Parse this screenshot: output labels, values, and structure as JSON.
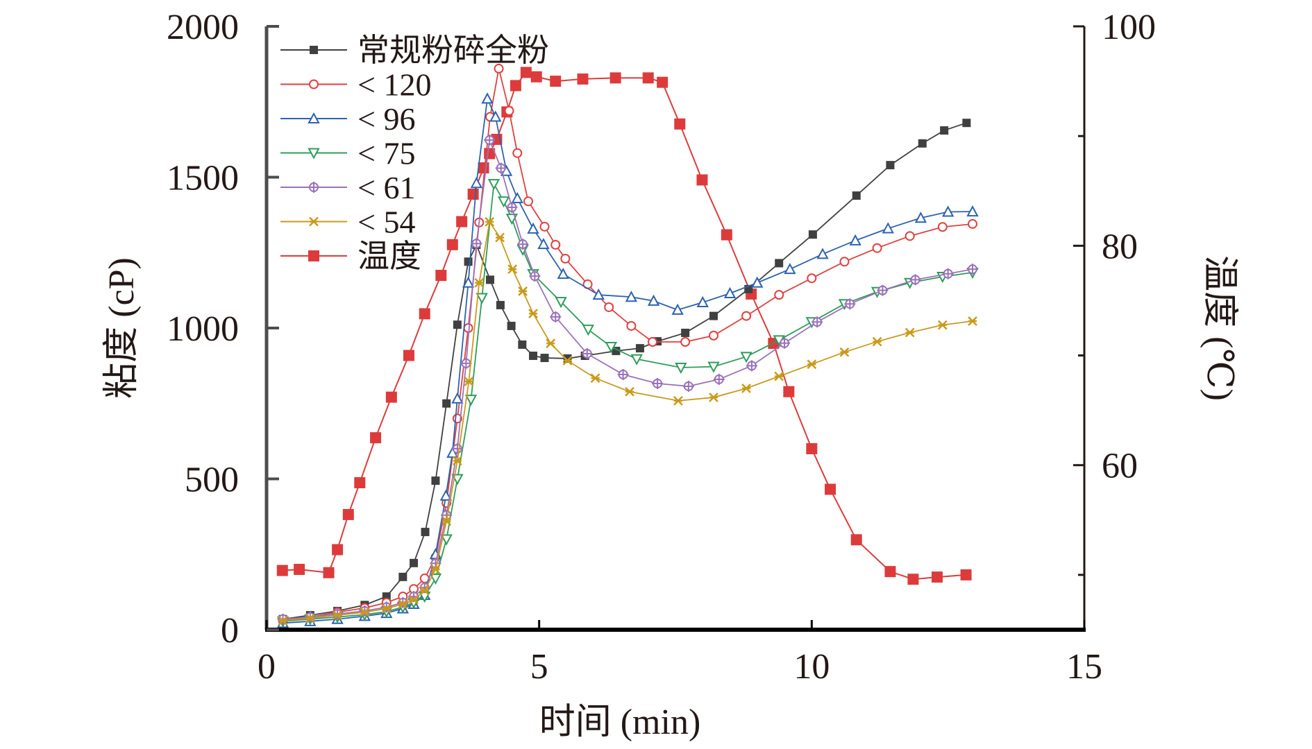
{
  "chart_data": {
    "type": "line",
    "title": "",
    "xlabel": "时间 (min)",
    "ylabel": "粘度 (cP)",
    "y2label": "温度 (℃)",
    "xlim": [
      0,
      15
    ],
    "ylim": [
      0,
      2000
    ],
    "y2lim": [
      45,
      100
    ],
    "xticks": [
      0,
      5,
      10,
      15
    ],
    "yticks": [
      0,
      500,
      1000,
      1500,
      2000
    ],
    "y2ticks": [
      60,
      80,
      100
    ],
    "y2minor_ticks": [
      50,
      70,
      90
    ],
    "grid": false,
    "legend_position": "top-left",
    "series": [
      {
        "name": "常规粉碎全粉",
        "axis": "left",
        "color": "#404040",
        "marker": "filled-square",
        "points": [
          [
            0.3,
            35
          ],
          [
            0.8,
            48
          ],
          [
            1.3,
            62
          ],
          [
            1.8,
            82
          ],
          [
            2.2,
            110
          ],
          [
            2.5,
            175
          ],
          [
            2.7,
            221
          ],
          [
            2.91,
            324
          ],
          [
            3.1,
            494
          ],
          [
            3.3,
            750
          ],
          [
            3.5,
            1011
          ],
          [
            3.7,
            1220
          ],
          [
            3.85,
            1276
          ],
          [
            4.1,
            1160
          ],
          [
            4.29,
            1076
          ],
          [
            4.49,
            1007
          ],
          [
            4.69,
            945
          ],
          [
            4.89,
            908
          ],
          [
            5.1,
            901
          ],
          [
            5.52,
            899
          ],
          [
            5.84,
            908
          ],
          [
            6.41,
            924
          ],
          [
            6.85,
            933
          ],
          [
            7.17,
            956
          ],
          [
            7.68,
            984
          ],
          [
            8.2,
            1040
          ],
          [
            8.84,
            1129
          ],
          [
            9.4,
            1215
          ],
          [
            10.02,
            1310
          ],
          [
            10.82,
            1439
          ],
          [
            11.44,
            1540
          ],
          [
            12.03,
            1612
          ],
          [
            12.43,
            1655
          ],
          [
            12.84,
            1680
          ]
        ]
      },
      {
        "name": "< 120",
        "axis": "left",
        "color": "#e0403f",
        "marker": "open-circle",
        "points": [
          [
            0.3,
            30
          ],
          [
            0.8,
            42
          ],
          [
            1.3,
            58
          ],
          [
            1.8,
            72
          ],
          [
            2.2,
            90
          ],
          [
            2.5,
            110
          ],
          [
            2.7,
            135
          ],
          [
            2.9,
            170
          ],
          [
            3.1,
            240
          ],
          [
            3.3,
            420
          ],
          [
            3.5,
            700
          ],
          [
            3.7,
            1000
          ],
          [
            3.9,
            1350
          ],
          [
            4.1,
            1700
          ],
          [
            4.26,
            1860
          ],
          [
            4.45,
            1720
          ],
          [
            4.6,
            1580
          ],
          [
            4.8,
            1420
          ],
          [
            5.1,
            1336
          ],
          [
            5.3,
            1276
          ],
          [
            5.48,
            1230
          ],
          [
            5.89,
            1145
          ],
          [
            6.28,
            1069
          ],
          [
            6.69,
            1007
          ],
          [
            7.08,
            954
          ],
          [
            7.68,
            954
          ],
          [
            8.2,
            975
          ],
          [
            8.8,
            1040
          ],
          [
            9.4,
            1110
          ],
          [
            10.0,
            1165
          ],
          [
            10.6,
            1220
          ],
          [
            11.2,
            1265
          ],
          [
            11.8,
            1305
          ],
          [
            12.4,
            1335
          ],
          [
            12.95,
            1345
          ]
        ]
      },
      {
        "name": "< 96",
        "axis": "left",
        "color": "#2c62b0",
        "marker": "open-triangle-up",
        "points": [
          [
            0.3,
            22
          ],
          [
            0.8,
            28
          ],
          [
            1.3,
            35
          ],
          [
            1.8,
            45
          ],
          [
            2.2,
            55
          ],
          [
            2.5,
            70
          ],
          [
            2.7,
            85
          ],
          [
            2.9,
            115
          ],
          [
            3.1,
            250
          ],
          [
            3.29,
            444
          ],
          [
            3.41,
            586
          ],
          [
            3.5,
            766
          ],
          [
            3.7,
            1150
          ],
          [
            3.85,
            1480
          ],
          [
            4.05,
            1760
          ],
          [
            4.2,
            1700
          ],
          [
            4.4,
            1520
          ],
          [
            4.6,
            1430
          ],
          [
            4.89,
            1329
          ],
          [
            5.08,
            1278
          ],
          [
            5.44,
            1179
          ],
          [
            6.09,
            1110
          ],
          [
            6.69,
            1103
          ],
          [
            7.1,
            1090
          ],
          [
            7.54,
            1060
          ],
          [
            8.0,
            1085
          ],
          [
            8.5,
            1115
          ],
          [
            9.0,
            1150
          ],
          [
            9.6,
            1195
          ],
          [
            10.2,
            1245
          ],
          [
            10.8,
            1290
          ],
          [
            11.4,
            1330
          ],
          [
            12.0,
            1365
          ],
          [
            12.5,
            1385
          ],
          [
            12.95,
            1386
          ]
        ]
      },
      {
        "name": "< 75",
        "axis": "left",
        "color": "#2e9c5a",
        "marker": "open-triangle-down",
        "points": [
          [
            0.3,
            28
          ],
          [
            0.8,
            35
          ],
          [
            1.3,
            42
          ],
          [
            1.8,
            50
          ],
          [
            2.2,
            60
          ],
          [
            2.5,
            75
          ],
          [
            2.7,
            90
          ],
          [
            2.9,
            110
          ],
          [
            3.1,
            170
          ],
          [
            3.3,
            300
          ],
          [
            3.5,
            500
          ],
          [
            3.75,
            763
          ],
          [
            3.95,
            1100
          ],
          [
            4.17,
            1478
          ],
          [
            4.35,
            1420
          ],
          [
            4.5,
            1363
          ],
          [
            4.7,
            1260
          ],
          [
            4.89,
            1179
          ],
          [
            5.4,
            1087
          ],
          [
            5.9,
            995
          ],
          [
            6.32,
            938
          ],
          [
            6.79,
            897
          ],
          [
            7.6,
            869
          ],
          [
            8.2,
            872
          ],
          [
            8.8,
            905
          ],
          [
            9.4,
            960
          ],
          [
            10.0,
            1020
          ],
          [
            10.6,
            1080
          ],
          [
            11.2,
            1120
          ],
          [
            11.8,
            1150
          ],
          [
            12.4,
            1170
          ],
          [
            12.95,
            1184
          ]
        ]
      },
      {
        "name": "< 61",
        "axis": "left",
        "color": "#9a72b8",
        "marker": "crossed-circle",
        "points": [
          [
            0.3,
            35
          ],
          [
            0.8,
            42
          ],
          [
            1.3,
            52
          ],
          [
            1.8,
            62
          ],
          [
            2.2,
            75
          ],
          [
            2.5,
            90
          ],
          [
            2.7,
            110
          ],
          [
            2.9,
            140
          ],
          [
            3.1,
            220
          ],
          [
            3.3,
            380
          ],
          [
            3.5,
            600
          ],
          [
            3.66,
            883
          ],
          [
            3.85,
            1280
          ],
          [
            4.09,
            1623
          ],
          [
            4.3,
            1530
          ],
          [
            4.5,
            1400
          ],
          [
            4.7,
            1278
          ],
          [
            4.92,
            1172
          ],
          [
            5.3,
            1037
          ],
          [
            5.88,
            915
          ],
          [
            6.54,
            846
          ],
          [
            7.17,
            816
          ],
          [
            7.74,
            807
          ],
          [
            8.3,
            830
          ],
          [
            8.9,
            875
          ],
          [
            9.5,
            950
          ],
          [
            10.1,
            1020
          ],
          [
            10.7,
            1080
          ],
          [
            11.3,
            1125
          ],
          [
            11.9,
            1160
          ],
          [
            12.5,
            1180
          ],
          [
            12.95,
            1195
          ]
        ]
      },
      {
        "name": "< 54",
        "axis": "left",
        "color": "#c99a1a",
        "marker": "x-star",
        "points": [
          [
            0.3,
            30
          ],
          [
            0.8,
            38
          ],
          [
            1.3,
            48
          ],
          [
            1.8,
            58
          ],
          [
            2.2,
            70
          ],
          [
            2.5,
            85
          ],
          [
            2.7,
            100
          ],
          [
            2.9,
            130
          ],
          [
            3.1,
            200
          ],
          [
            3.3,
            360
          ],
          [
            3.5,
            560
          ],
          [
            3.71,
            823
          ],
          [
            3.9,
            1150
          ],
          [
            4.09,
            1352
          ],
          [
            4.28,
            1300
          ],
          [
            4.51,
            1195
          ],
          [
            4.7,
            1122
          ],
          [
            4.89,
            1048
          ],
          [
            5.21,
            949
          ],
          [
            5.52,
            892
          ],
          [
            6.03,
            834
          ],
          [
            6.66,
            789
          ],
          [
            7.55,
            759
          ],
          [
            8.2,
            770
          ],
          [
            8.8,
            800
          ],
          [
            9.4,
            840
          ],
          [
            10.0,
            880
          ],
          [
            10.6,
            920
          ],
          [
            11.2,
            955
          ],
          [
            11.8,
            985
          ],
          [
            12.4,
            1010
          ],
          [
            12.95,
            1023
          ]
        ]
      },
      {
        "name": "温度",
        "axis": "right",
        "color": "#dd3b3b",
        "marker": "filled-square-large",
        "points": [
          [
            0.29,
            50.4
          ],
          [
            0.6,
            50.5
          ],
          [
            1.14,
            50.2
          ],
          [
            1.3,
            52.3
          ],
          [
            1.5,
            55.5
          ],
          [
            1.71,
            58.4
          ],
          [
            2.0,
            62.5
          ],
          [
            2.29,
            66.2
          ],
          [
            2.61,
            70.0
          ],
          [
            2.9,
            73.8
          ],
          [
            3.2,
            77.3
          ],
          [
            3.41,
            80.1
          ],
          [
            3.58,
            82.2
          ],
          [
            3.79,
            84.7
          ],
          [
            3.98,
            87.1
          ],
          [
            4.09,
            88.4
          ],
          [
            4.22,
            89.7
          ],
          [
            4.41,
            92.2
          ],
          [
            4.57,
            94.6
          ],
          [
            4.76,
            95.8
          ],
          [
            4.95,
            95.4
          ],
          [
            5.3,
            95.0
          ],
          [
            5.8,
            95.2
          ],
          [
            6.4,
            95.3
          ],
          [
            7.0,
            95.3
          ],
          [
            7.26,
            94.9
          ],
          [
            7.58,
            91.1
          ],
          [
            7.99,
            86.0
          ],
          [
            8.44,
            81.0
          ],
          [
            8.89,
            75.6
          ],
          [
            9.3,
            71.1
          ],
          [
            9.58,
            66.7
          ],
          [
            10.0,
            61.5
          ],
          [
            10.34,
            57.8
          ],
          [
            10.82,
            53.2
          ],
          [
            11.44,
            50.3
          ],
          [
            11.86,
            49.6
          ],
          [
            12.3,
            49.8
          ],
          [
            12.83,
            50.0
          ]
        ]
      }
    ]
  }
}
